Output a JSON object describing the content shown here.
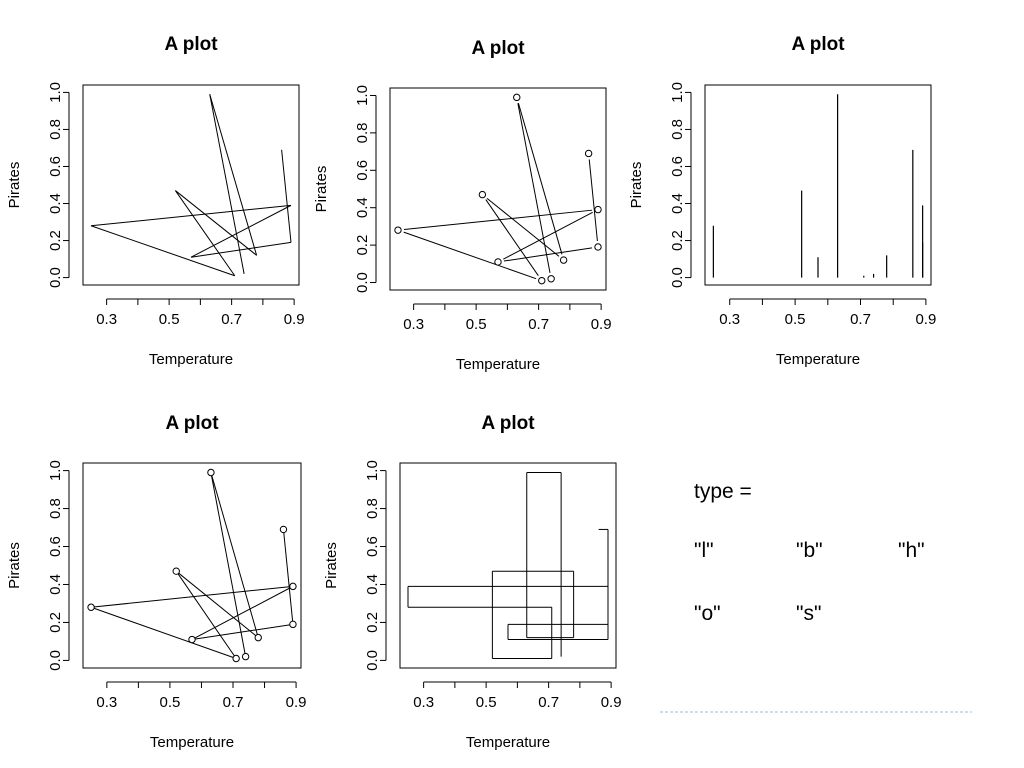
{
  "chart_data": [
    {
      "type": "line",
      "plot_type": "l",
      "title": "A plot",
      "xlabel": "Temperature",
      "ylabel": "Pirates",
      "xlim": [
        0.25,
        0.89
      ],
      "ylim": [
        0,
        1
      ],
      "x_ticks": [
        "0.3",
        "0.5",
        "0.7",
        "0.9"
      ],
      "y_ticks": [
        "0.0",
        "0.2",
        "0.4",
        "0.6",
        "0.8",
        "1.0"
      ]
    },
    {
      "type": "line",
      "plot_type": "b",
      "title": "A plot",
      "xlabel": "Temperature",
      "ylabel": "Pirates",
      "xlim": [
        0.25,
        0.89
      ],
      "ylim": [
        0,
        1
      ],
      "x_ticks": [
        "0.3",
        "0.5",
        "0.7",
        "0.9"
      ],
      "y_ticks": [
        "0.0",
        "0.2",
        "0.4",
        "0.6",
        "0.8",
        "1.0"
      ]
    },
    {
      "type": "bar",
      "plot_type": "h",
      "title": "A plot",
      "xlabel": "Temperature",
      "ylabel": "Pirates",
      "xlim": [
        0.25,
        0.89
      ],
      "ylim": [
        0,
        1
      ],
      "x_ticks": [
        "0.3",
        "0.5",
        "0.7",
        "0.9"
      ],
      "y_ticks": [
        "0.0",
        "0.2",
        "0.4",
        "0.6",
        "0.8",
        "1.0"
      ]
    },
    {
      "type": "line",
      "plot_type": "o",
      "title": "A plot",
      "xlabel": "Temperature",
      "ylabel": "Pirates",
      "xlim": [
        0.25,
        0.89
      ],
      "ylim": [
        0,
        1
      ],
      "x_ticks": [
        "0.3",
        "0.5",
        "0.7",
        "0.9"
      ],
      "y_ticks": [
        "0.0",
        "0.2",
        "0.4",
        "0.6",
        "0.8",
        "1.0"
      ]
    },
    {
      "type": "line",
      "plot_type": "s",
      "title": "A plot",
      "xlabel": "Temperature",
      "ylabel": "Pirates",
      "xlim": [
        0.25,
        0.89
      ],
      "ylim": [
        0,
        1
      ],
      "x_ticks": [
        "0.3",
        "0.5",
        "0.7",
        "0.9"
      ],
      "y_ticks": [
        "0.0",
        "0.2",
        "0.4",
        "0.6",
        "0.8",
        "1.0"
      ]
    }
  ],
  "points": {
    "x": [
      0.86,
      0.89,
      0.57,
      0.89,
      0.25,
      0.71,
      0.52,
      0.78,
      0.63,
      0.74
    ],
    "y": [
      0.69,
      0.19,
      0.11,
      0.39,
      0.28,
      0.01,
      0.47,
      0.12,
      0.99,
      0.02
    ]
  },
  "legend": {
    "heading": "type =",
    "types": [
      "\"l\"",
      "\"b\"",
      "\"h\"",
      "\"o\"",
      "\"s\""
    ]
  },
  "colors": {
    "line": "#000000",
    "dashed_rule": "#9fb8d4"
  }
}
